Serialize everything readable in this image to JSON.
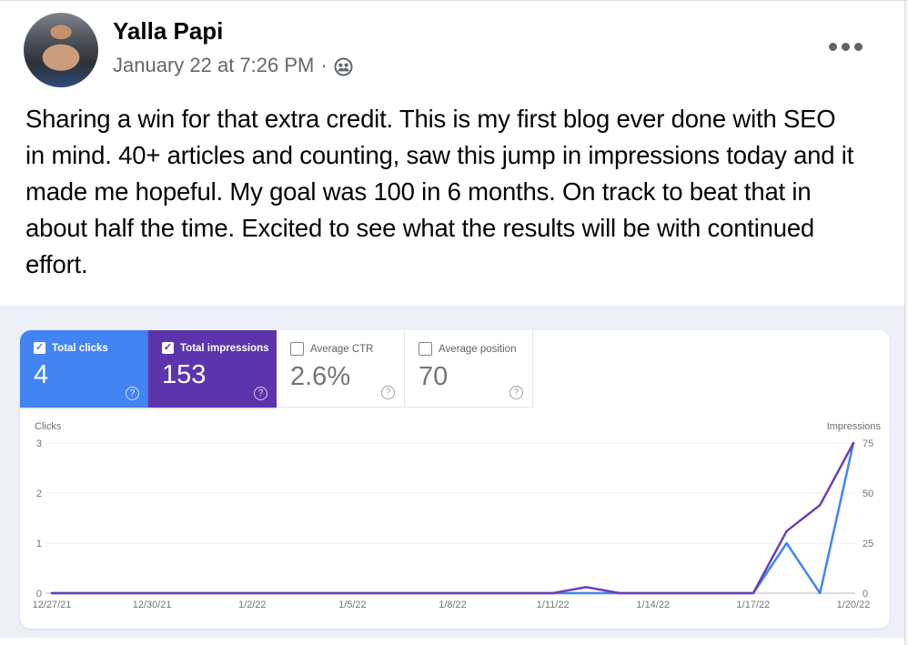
{
  "post": {
    "author": "Yalla Papi",
    "timestamp": "January 22 at 7:26 PM",
    "separator": "·",
    "body": "Sharing a win for that extra credit. This is my first blog ever done with SEO in mind. 40+ articles and counting, saw this jump in impressions today and it made me hopeful. My goal was 100 in 6 months. On track to beat that in about half the time. Excited to see what the results will be with continued effort."
  },
  "screenshot": {
    "cards": [
      {
        "label": "Total clicks",
        "value": "4",
        "checked": true,
        "bg": "#4384f3",
        "fg": "#ffffff"
      },
      {
        "label": "Total impressions",
        "value": "153",
        "checked": true,
        "bg": "#5c34ac",
        "fg": "#ffffff"
      },
      {
        "label": "Average CTR",
        "value": "2.6%",
        "checked": false,
        "bg": "#ffffff",
        "fg": "#757575"
      },
      {
        "label": "Average position",
        "value": "70",
        "checked": false,
        "bg": "#ffffff",
        "fg": "#757575"
      }
    ],
    "help_icon_glyph": "?",
    "checkbox_checked_glyph": "✓",
    "colors": {
      "clicks_blue": "#4384f3",
      "impressions_purple": "#5c34ac",
      "page_bg": "#edf0f6",
      "panel_bg": "#ffffff"
    }
  },
  "chart_data": {
    "type": "line",
    "x": [
      "12/27/21",
      "12/28/21",
      "12/29/21",
      "12/30/21",
      "12/31/21",
      "1/1/22",
      "1/2/22",
      "1/3/22",
      "1/4/22",
      "1/5/22",
      "1/6/22",
      "1/7/22",
      "1/8/22",
      "1/9/22",
      "1/10/22",
      "1/11/22",
      "1/12/22",
      "1/13/22",
      "1/14/22",
      "1/15/22",
      "1/16/22",
      "1/17/22",
      "1/18/22",
      "1/19/22",
      "1/20/22"
    ],
    "x_tick_labels": [
      "12/27/21",
      "12/30/21",
      "1/2/22",
      "1/5/22",
      "1/8/22",
      "1/11/22",
      "1/14/22",
      "1/17/22",
      "1/20/22"
    ],
    "series": [
      {
        "name": "Clicks",
        "axis": "left",
        "color": "#4285f4",
        "values": [
          0,
          0,
          0,
          0,
          0,
          0,
          0,
          0,
          0,
          0,
          0,
          0,
          0,
          0,
          0,
          0,
          0,
          0,
          0,
          0,
          0,
          0,
          1,
          0,
          3
        ]
      },
      {
        "name": "Impressions",
        "axis": "right",
        "color": "#6b3fb8",
        "values": [
          0,
          0,
          0,
          0,
          0,
          0,
          0,
          0,
          0,
          0,
          0,
          0,
          0,
          0,
          0,
          0,
          3,
          0,
          0,
          0,
          0,
          0,
          31,
          44,
          75
        ]
      }
    ],
    "left_axis": {
      "label": "Clicks",
      "ticks": [
        0,
        1,
        2,
        3
      ],
      "range": [
        0,
        3
      ]
    },
    "right_axis": {
      "label": "Impressions",
      "ticks": [
        0,
        25,
        50,
        75
      ],
      "range": [
        0,
        75
      ]
    },
    "grid": true,
    "legend_position": "none",
    "title": ""
  }
}
